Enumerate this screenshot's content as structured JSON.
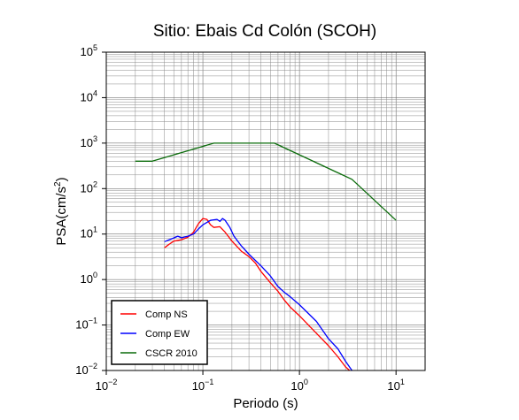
{
  "chart_data": {
    "type": "line",
    "title": "Sitio: Ebais Cd Colón (SCOH)",
    "xlabel": "Periodo (s)",
    "ylabel": "PSA(cm/s2)",
    "x_scale": "log",
    "y_scale": "log",
    "xlim": [
      0.01,
      20
    ],
    "ylim": [
      0.01,
      100000
    ],
    "x_ticks": [
      {
        "base": "10",
        "exp": "−2",
        "value": 0.01
      },
      {
        "base": "10",
        "exp": "−1",
        "value": 0.1
      },
      {
        "base": "10",
        "exp": "0",
        "value": 1
      },
      {
        "base": "10",
        "exp": "1",
        "value": 10
      }
    ],
    "y_ticks": [
      {
        "base": "10",
        "exp": "−2",
        "value": 0.01
      },
      {
        "base": "10",
        "exp": "−1",
        "value": 0.1
      },
      {
        "base": "10",
        "exp": "0",
        "value": 1
      },
      {
        "base": "10",
        "exp": "1",
        "value": 10
      },
      {
        "base": "10",
        "exp": "2",
        "value": 100
      },
      {
        "base": "10",
        "exp": "3",
        "value": 1000
      },
      {
        "base": "10",
        "exp": "4",
        "value": 10000
      },
      {
        "base": "10",
        "exp": "5",
        "value": 100000
      }
    ],
    "grid": true,
    "legend_position": "bottom-left",
    "series": [
      {
        "name": "Comp NS",
        "color": "#ff0000",
        "points": [
          [
            0.04,
            5
          ],
          [
            0.045,
            6
          ],
          [
            0.05,
            7
          ],
          [
            0.06,
            7.5
          ],
          [
            0.07,
            8.5
          ],
          [
            0.08,
            11
          ],
          [
            0.09,
            17
          ],
          [
            0.1,
            22
          ],
          [
            0.11,
            21
          ],
          [
            0.12,
            16
          ],
          [
            0.13,
            14
          ],
          [
            0.15,
            14.5
          ],
          [
            0.17,
            11
          ],
          [
            0.2,
            7
          ],
          [
            0.25,
            4.2
          ],
          [
            0.3,
            3.2
          ],
          [
            0.35,
            2.3
          ],
          [
            0.4,
            1.5
          ],
          [
            0.5,
            0.85
          ],
          [
            0.6,
            0.55
          ],
          [
            0.7,
            0.35
          ],
          [
            0.8,
            0.25
          ],
          [
            1.0,
            0.16
          ],
          [
            1.3,
            0.09
          ],
          [
            1.7,
            0.05
          ],
          [
            2.0,
            0.035
          ],
          [
            2.5,
            0.02
          ],
          [
            3.0,
            0.012
          ],
          [
            3.3,
            0.01
          ]
        ]
      },
      {
        "name": "Comp EW",
        "color": "#0000ff",
        "points": [
          [
            0.04,
            6.8
          ],
          [
            0.045,
            7.5
          ],
          [
            0.05,
            8.2
          ],
          [
            0.055,
            9
          ],
          [
            0.06,
            8.3
          ],
          [
            0.07,
            9
          ],
          [
            0.08,
            10
          ],
          [
            0.09,
            13
          ],
          [
            0.1,
            16
          ],
          [
            0.12,
            20
          ],
          [
            0.14,
            21
          ],
          [
            0.15,
            19
          ],
          [
            0.16,
            22
          ],
          [
            0.17,
            20
          ],
          [
            0.19,
            14
          ],
          [
            0.21,
            9
          ],
          [
            0.25,
            5.5
          ],
          [
            0.3,
            3.6
          ],
          [
            0.4,
            2.0
          ],
          [
            0.5,
            1.2
          ],
          [
            0.6,
            0.7
          ],
          [
            0.7,
            0.52
          ],
          [
            0.8,
            0.42
          ],
          [
            1.0,
            0.28
          ],
          [
            1.5,
            0.12
          ],
          [
            2.0,
            0.05
          ],
          [
            2.5,
            0.03
          ],
          [
            3.0,
            0.016
          ],
          [
            3.5,
            0.01
          ]
        ]
      },
      {
        "name": "CSCR 2010",
        "color": "#0a6b0a",
        "points": [
          [
            0.02,
            400
          ],
          [
            0.03,
            400
          ],
          [
            0.13,
            1000
          ],
          [
            0.55,
            1000
          ],
          [
            3.5,
            160
          ],
          [
            10,
            20
          ]
        ]
      }
    ]
  }
}
